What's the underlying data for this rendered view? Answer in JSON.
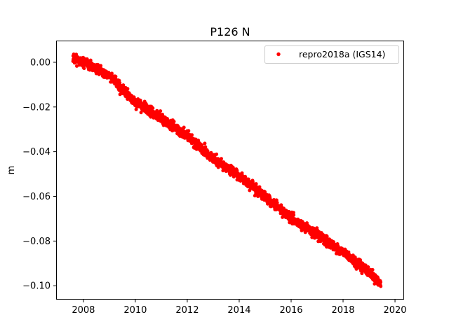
{
  "chart_data": {
    "type": "scatter",
    "title": "P126 N",
    "xlabel": "",
    "ylabel": "m",
    "xlim": [
      2006.95,
      2020.35
    ],
    "ylim": [
      -0.1062,
      0.0097
    ],
    "x_ticks": [
      2008,
      2010,
      2012,
      2014,
      2016,
      2018,
      2020
    ],
    "x_tick_labels": [
      "2008",
      "2010",
      "2012",
      "2014",
      "2016",
      "2018",
      "2020"
    ],
    "y_ticks": [
      0.0,
      -0.02,
      -0.04,
      -0.06,
      -0.08,
      -0.1
    ],
    "y_tick_labels": [
      "0.00",
      "−0.02",
      "−0.04",
      "−0.06",
      "−0.08",
      "−0.10"
    ],
    "grid": false,
    "legend_position": "top-right",
    "series": [
      {
        "name": "repro2018a (IGS14)",
        "color": "#ff0000",
        "marker": "dot",
        "x_start": 2007.6,
        "x_end": 2019.45,
        "trend_points": [
          {
            "x": 2007.6,
            "y": 0.002
          },
          {
            "x": 2008.0,
            "y": 0.0
          },
          {
            "x": 2009.0,
            "y": -0.006
          },
          {
            "x": 2010.0,
            "y": -0.018
          },
          {
            "x": 2011.0,
            "y": -0.025
          },
          {
            "x": 2012.0,
            "y": -0.033
          },
          {
            "x": 2013.0,
            "y": -0.043
          },
          {
            "x": 2014.0,
            "y": -0.051
          },
          {
            "x": 2015.0,
            "y": -0.06
          },
          {
            "x": 2016.0,
            "y": -0.07
          },
          {
            "x": 2017.0,
            "y": -0.077
          },
          {
            "x": 2018.0,
            "y": -0.085
          },
          {
            "x": 2019.0,
            "y": -0.094
          },
          {
            "x": 2019.45,
            "y": -0.099
          }
        ],
        "noise_amplitude_m": 0.0015
      }
    ]
  }
}
